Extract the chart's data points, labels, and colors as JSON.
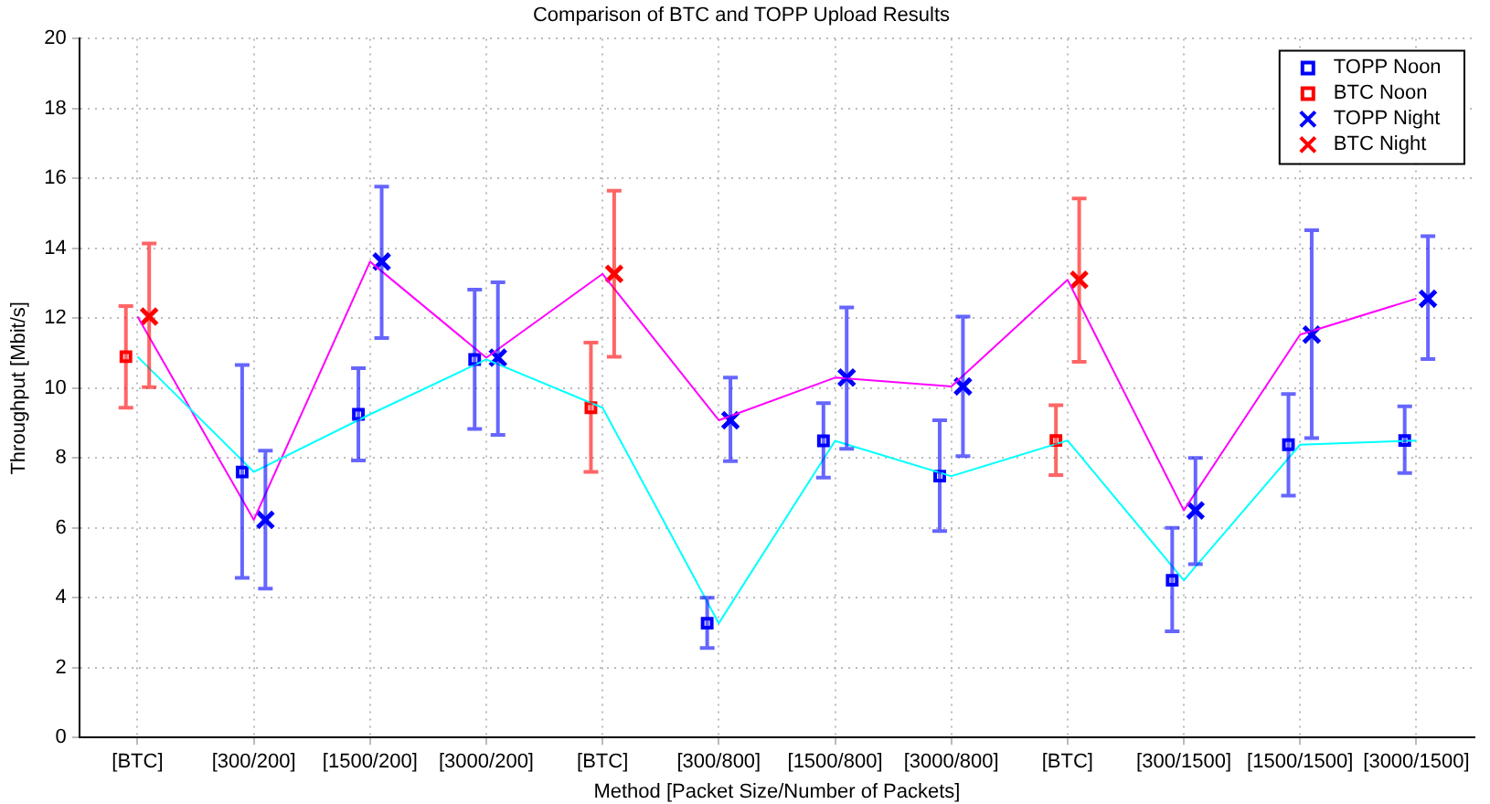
{
  "chart_data": {
    "type": "scatter",
    "title": "Comparison of BTC and TOPP Upload Results",
    "xlabel": "Method [Packet Size/Number of Packets]",
    "ylabel": "Throughput [Mbit/s]",
    "categories": [
      "[BTC]",
      "[300/200]",
      "[1500/200]",
      "[3000/200]",
      "[BTC]",
      "[300/800]",
      "[1500/800]",
      "[3000/800]",
      "[BTC]",
      "[300/1500]",
      "[1500/1500]",
      "[3000/1500]"
    ],
    "ylim": [
      0,
      20
    ],
    "yticks": [
      0,
      2,
      4,
      6,
      8,
      10,
      12,
      14,
      16,
      18,
      20
    ],
    "grid": true,
    "legend": "top right",
    "series": [
      {
        "type": "line",
        "color": "#00ffff",
        "marker": "none",
        "values": [
          10.9,
          7.6,
          9.25,
          10.82,
          9.44,
          3.27,
          8.49,
          7.48,
          8.5,
          4.5,
          8.38,
          8.5
        ]
      },
      {
        "type": "line",
        "color": "#ff00ff",
        "marker": "none",
        "values": [
          12.05,
          6.23,
          13.62,
          10.87,
          13.27,
          9.08,
          10.3,
          10.05,
          13.1,
          6.5,
          11.53,
          12.56
        ]
      },
      {
        "name": "TOPP Noon",
        "type": "scatter",
        "color": "#0000ff",
        "marker": "square",
        "values": [
          null,
          7.6,
          9.25,
          10.82,
          null,
          3.27,
          8.49,
          7.48,
          null,
          4.5,
          8.38,
          8.5
        ],
        "errors": [
          null,
          [
            4.57,
            10.66
          ],
          [
            7.93,
            10.57
          ],
          [
            8.83,
            12.82
          ],
          null,
          [
            2.56,
            4.0
          ],
          [
            7.44,
            9.57
          ],
          [
            5.91,
            9.08
          ],
          null,
          [
            3.04,
            6.0
          ],
          [
            6.92,
            9.83
          ],
          [
            7.57,
            9.48
          ]
        ]
      },
      {
        "name": "BTC Noon",
        "type": "scatter",
        "color": "#ff0000",
        "marker": "square",
        "values": [
          10.9,
          null,
          null,
          null,
          9.44,
          null,
          null,
          null,
          8.5,
          null,
          null,
          null
        ],
        "errors": [
          [
            9.44,
            12.35
          ],
          null,
          null,
          null,
          [
            7.6,
            11.3
          ],
          null,
          null,
          null,
          [
            7.51,
            9.51
          ],
          null,
          null,
          null
        ]
      },
      {
        "name": "TOPP Night",
        "type": "scatter",
        "color": "#0000ff",
        "marker": "cross",
        "values": [
          null,
          6.23,
          13.62,
          10.87,
          null,
          9.08,
          10.3,
          10.05,
          null,
          6.5,
          11.53,
          12.56
        ],
        "errors": [
          null,
          [
            4.26,
            8.21
          ],
          [
            11.43,
            15.77
          ],
          [
            8.66,
            13.03
          ],
          null,
          [
            7.91,
            10.3
          ],
          [
            8.26,
            12.31
          ],
          [
            8.05,
            12.05
          ],
          null,
          [
            4.96,
            8.0
          ],
          [
            8.57,
            14.52
          ],
          [
            10.83,
            14.35
          ]
        ]
      },
      {
        "name": "BTC Night",
        "type": "scatter",
        "color": "#ff0000",
        "marker": "cross",
        "values": [
          12.05,
          null,
          null,
          null,
          13.27,
          null,
          null,
          null,
          13.1,
          null,
          null,
          null
        ],
        "errors": [
          [
            10.03,
            14.14
          ],
          null,
          null,
          null,
          [
            10.9,
            15.65
          ],
          null,
          null,
          null,
          [
            10.75,
            15.43
          ],
          null,
          null,
          null
        ]
      }
    ]
  }
}
